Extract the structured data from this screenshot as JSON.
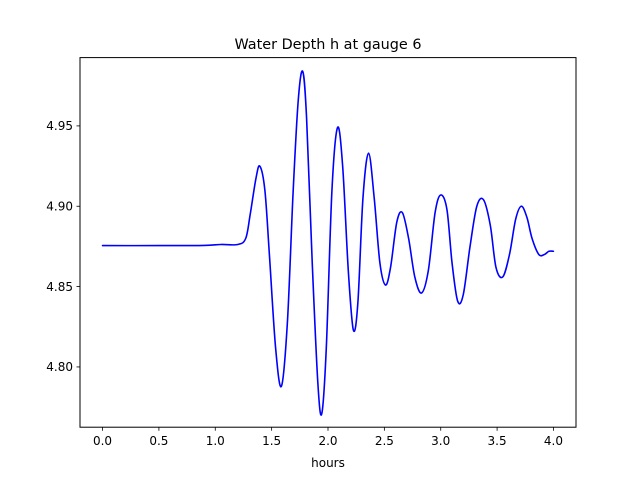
{
  "chart_data": {
    "type": "line",
    "title": "Water Depth h at gauge 6",
    "xlabel": "hours",
    "ylabel": "",
    "xlim": [
      -0.2,
      4.2
    ],
    "ylim": [
      4.7625,
      4.9925
    ],
    "xticks": [
      {
        "value": 0.0,
        "label": "0.0"
      },
      {
        "value": 0.5,
        "label": "0.5"
      },
      {
        "value": 1.0,
        "label": "1.0"
      },
      {
        "value": 1.5,
        "label": "1.5"
      },
      {
        "value": 2.0,
        "label": "2.0"
      },
      {
        "value": 2.5,
        "label": "2.5"
      },
      {
        "value": 3.0,
        "label": "3.0"
      },
      {
        "value": 3.5,
        "label": "3.5"
      },
      {
        "value": 4.0,
        "label": "4.0"
      }
    ],
    "yticks": [
      {
        "value": 4.8,
        "label": "4.80"
      },
      {
        "value": 4.85,
        "label": "4.85"
      },
      {
        "value": 4.9,
        "label": "4.90"
      },
      {
        "value": 4.95,
        "label": "4.95"
      }
    ],
    "grid": false,
    "series": [
      {
        "color": "#0000ff",
        "x": [
          0.0,
          0.5,
          0.9,
          1.05,
          1.2,
          1.27,
          1.31,
          1.36,
          1.395,
          1.44,
          1.48,
          1.535,
          1.587,
          1.64,
          1.69,
          1.735,
          1.775,
          1.81,
          1.86,
          1.91,
          1.945,
          1.985,
          2.035,
          2.085,
          2.13,
          2.18,
          2.225,
          2.265,
          2.31,
          2.36,
          2.41,
          2.46,
          2.51,
          2.555,
          2.61,
          2.66,
          2.715,
          2.77,
          2.83,
          2.89,
          2.95,
          3.0,
          3.055,
          3.1,
          3.15,
          3.2,
          3.26,
          3.32,
          3.38,
          3.44,
          3.49,
          3.55,
          3.61,
          3.665,
          3.715,
          3.765,
          3.81,
          3.87,
          3.92,
          3.96,
          4.0
        ],
        "y": [
          4.8755,
          4.8755,
          4.8756,
          4.8762,
          4.8762,
          4.88,
          4.895,
          4.917,
          4.925,
          4.91,
          4.87,
          4.812,
          4.788,
          4.828,
          4.908,
          4.965,
          4.984,
          4.955,
          4.865,
          4.79,
          4.771,
          4.812,
          4.91,
          4.949,
          4.925,
          4.86,
          4.823,
          4.84,
          4.905,
          4.933,
          4.905,
          4.865,
          4.851,
          4.862,
          4.89,
          4.896,
          4.88,
          4.856,
          4.846,
          4.86,
          4.896,
          4.907,
          4.898,
          4.865,
          4.841,
          4.845,
          4.875,
          4.9,
          4.904,
          4.888,
          4.862,
          4.856,
          4.87,
          4.892,
          4.9,
          4.893,
          4.88,
          4.87,
          4.87,
          4.872,
          4.872
        ]
      }
    ]
  }
}
